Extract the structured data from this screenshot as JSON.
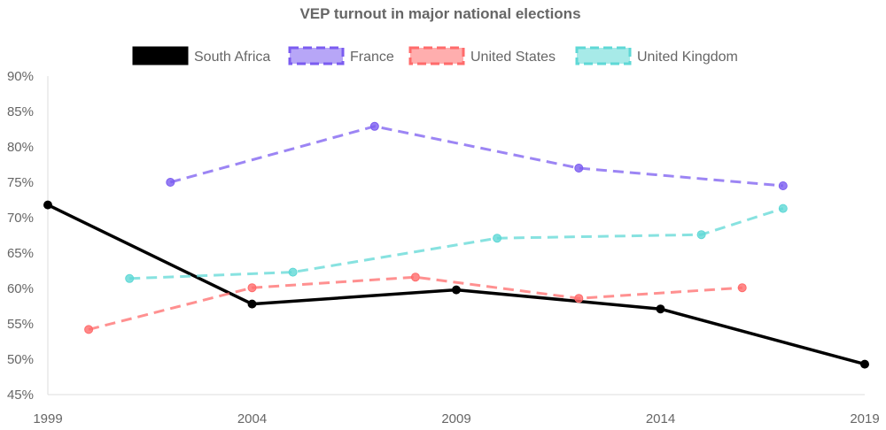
{
  "chart_data": {
    "type": "line",
    "title": "VEP turnout in major national elections",
    "xlabel": "",
    "ylabel": "",
    "xlim": [
      1999,
      2019
    ],
    "ylim": [
      45,
      90
    ],
    "x_ticks": [
      1999,
      2004,
      2009,
      2014,
      2019
    ],
    "x_tick_labels": [
      "1999",
      "2004",
      "2009",
      "2014",
      "2019"
    ],
    "y_ticks": [
      45,
      50,
      55,
      60,
      65,
      70,
      75,
      80,
      85,
      90
    ],
    "y_tick_labels": [
      "45%",
      "50%",
      "55%",
      "60%",
      "65%",
      "70%",
      "75%",
      "80%",
      "85%",
      "90%"
    ],
    "grid": false,
    "legend_position": "top",
    "series": [
      {
        "name": "South Africa",
        "color": "#000000",
        "dashed": false,
        "points": [
          [
            1999,
            71.8
          ],
          [
            2004,
            57.8
          ],
          [
            2009,
            59.8
          ],
          [
            2014,
            57.1
          ],
          [
            2019,
            49.3
          ]
        ]
      },
      {
        "name": "France",
        "color": "#7b5cf0",
        "dashed": true,
        "points": [
          [
            2002,
            75.0
          ],
          [
            2007,
            82.9
          ],
          [
            2012,
            77.0
          ],
          [
            2017,
            74.5
          ]
        ]
      },
      {
        "name": "United States",
        "color": "#ff6b6b",
        "dashed": true,
        "points": [
          [
            2000,
            54.2
          ],
          [
            2004,
            60.1
          ],
          [
            2008,
            61.6
          ],
          [
            2012,
            58.6
          ],
          [
            2016,
            60.1
          ]
        ]
      },
      {
        "name": "United Kingdom",
        "color": "#5fd8d6",
        "dashed": true,
        "points": [
          [
            2001,
            61.4
          ],
          [
            2005,
            62.3
          ],
          [
            2010,
            67.1
          ],
          [
            2015,
            67.6
          ],
          [
            2017,
            71.3
          ]
        ]
      }
    ]
  }
}
